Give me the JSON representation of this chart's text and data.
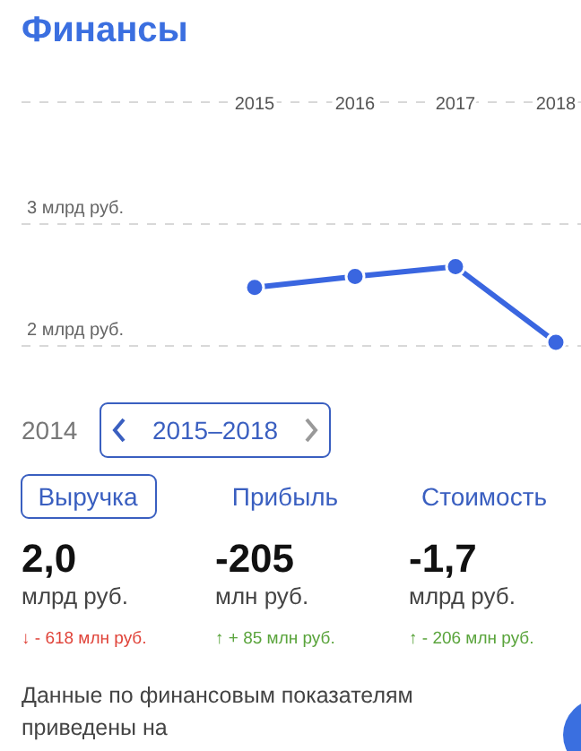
{
  "chart_data": {
    "type": "line",
    "title": "Финансы",
    "categories": [
      "2015",
      "2016",
      "2017",
      "2018"
    ],
    "series": [
      {
        "color": "#3a66e0",
        "values": [
          2.48,
          2.57,
          2.65,
          2.03
        ]
      }
    ],
    "ylim": [
      2,
      4
    ],
    "yticks": [
      {
        "value": 2,
        "label": "2 млрд руб."
      },
      {
        "value": 3,
        "label": "3 млрд руб."
      }
    ],
    "grid": "y",
    "marker": "circle",
    "line_style": "solid",
    "annotations": [
      "2014",
      "2015–2018",
      "Выручка",
      "Прибыль",
      "Стоимость",
      "2,0",
      "-205",
      "-1,7",
      "млрд руб.",
      "млн руб.",
      "млрд руб.",
      "↓ - 618 млн руб.",
      "↑ + 85 млн руб.",
      "↑ - 206 млн руб.",
      "Данные по финансовым показателям",
      "приведены на"
    ]
  }
}
